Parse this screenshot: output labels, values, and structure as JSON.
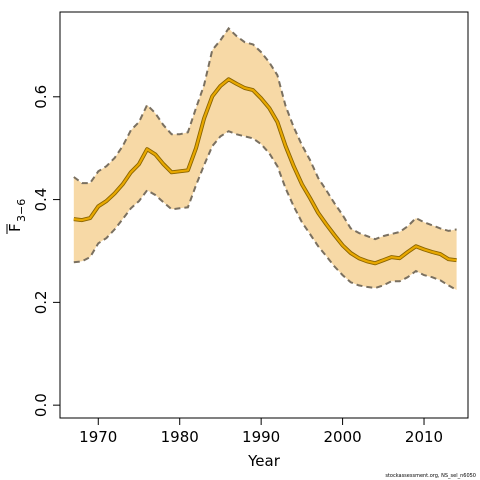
{
  "chart_data": {
    "type": "line",
    "xlabel": "Year",
    "ylabel": "F",
    "ylabel_sub": "3−6",
    "footnote": "stockassessment.org, NS_sel_n6050",
    "x": [
      1967,
      1968,
      1969,
      1970,
      1971,
      1972,
      1973,
      1974,
      1975,
      1976,
      1977,
      1978,
      1979,
      1980,
      1981,
      1982,
      1983,
      1984,
      1985,
      1986,
      1987,
      1988,
      1989,
      1990,
      1991,
      1992,
      1993,
      1994,
      1995,
      1996,
      1997,
      1998,
      1999,
      2000,
      2001,
      2002,
      2003,
      2004,
      2005,
      2006,
      2007,
      2008,
      2009,
      2010,
      2011,
      2012,
      2013,
      2014
    ],
    "values": [
      0.362,
      0.36,
      0.364,
      0.387,
      0.397,
      0.412,
      0.43,
      0.453,
      0.469,
      0.498,
      0.488,
      0.469,
      0.453,
      0.455,
      0.457,
      0.5,
      0.558,
      0.601,
      0.621,
      0.634,
      0.625,
      0.617,
      0.613,
      0.597,
      0.578,
      0.551,
      0.504,
      0.465,
      0.43,
      0.403,
      0.374,
      0.352,
      0.331,
      0.311,
      0.296,
      0.286,
      0.28,
      0.276,
      0.282,
      0.288,
      0.286,
      0.298,
      0.309,
      0.303,
      0.298,
      0.294,
      0.284,
      0.282
    ],
    "upper": [
      0.444,
      0.432,
      0.432,
      0.455,
      0.465,
      0.481,
      0.504,
      0.535,
      0.551,
      0.584,
      0.568,
      0.545,
      0.527,
      0.527,
      0.531,
      0.578,
      0.623,
      0.691,
      0.71,
      0.733,
      0.718,
      0.706,
      0.702,
      0.687,
      0.667,
      0.642,
      0.582,
      0.541,
      0.506,
      0.477,
      0.442,
      0.418,
      0.393,
      0.37,
      0.344,
      0.335,
      0.329,
      0.323,
      0.329,
      0.333,
      0.337,
      0.348,
      0.364,
      0.356,
      0.35,
      0.344,
      0.339,
      0.342
    ],
    "lower": [
      0.278,
      0.28,
      0.288,
      0.315,
      0.325,
      0.342,
      0.362,
      0.383,
      0.397,
      0.418,
      0.409,
      0.395,
      0.381,
      0.383,
      0.385,
      0.428,
      0.467,
      0.504,
      0.523,
      0.533,
      0.527,
      0.523,
      0.519,
      0.508,
      0.49,
      0.465,
      0.422,
      0.387,
      0.356,
      0.333,
      0.309,
      0.29,
      0.27,
      0.253,
      0.239,
      0.233,
      0.23,
      0.228,
      0.233,
      0.241,
      0.241,
      0.249,
      0.261,
      0.253,
      0.249,
      0.243,
      0.233,
      0.224
    ],
    "color": "#e8a800",
    "band_color": "#f7d9a6",
    "band_edge_color": "#7a7060",
    "xlim": [
      1965.3,
      2015.4
    ],
    "ylim": [
      -0.025,
      0.765
    ],
    "xticks": [
      1970,
      1980,
      1990,
      2000,
      2010
    ],
    "yticks": [
      {
        "value": 0,
        "label": "0.0"
      },
      0.2,
      0.4,
      0.6
    ]
  }
}
